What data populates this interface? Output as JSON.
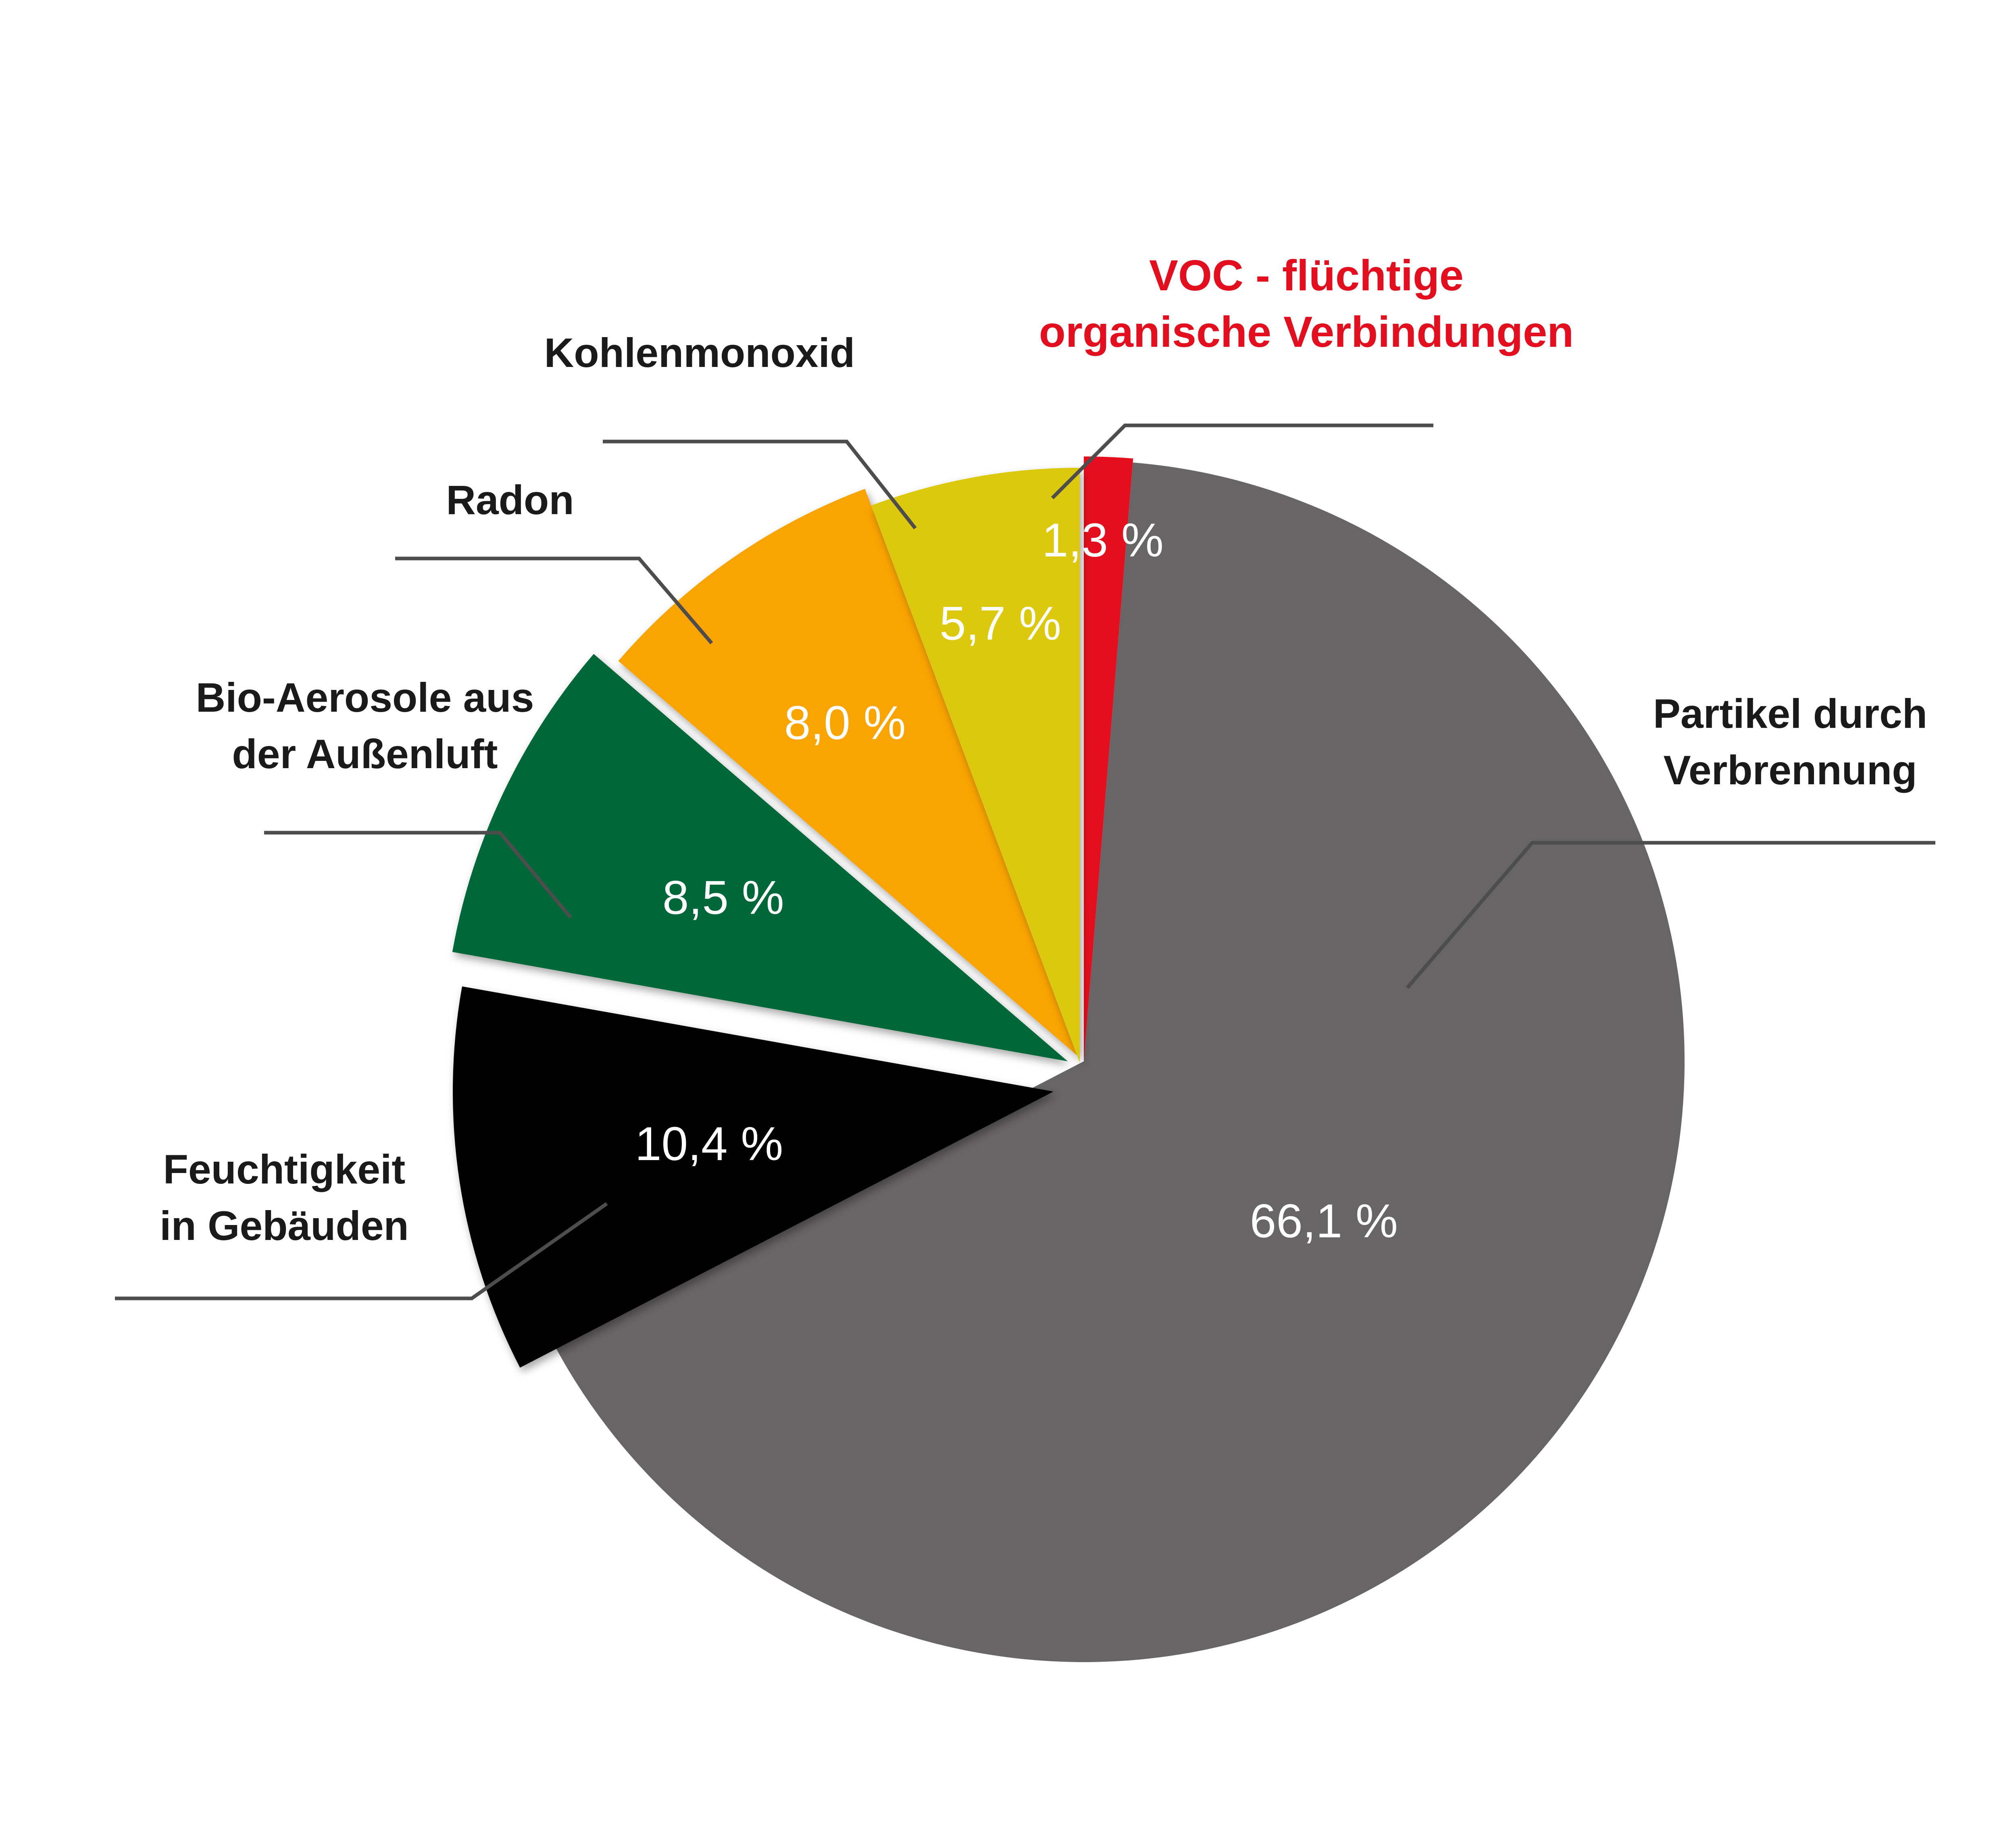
{
  "chart_data": {
    "type": "pie",
    "title": "",
    "slices": [
      {
        "id": "voc",
        "label": [
          "VOC - flüchtige",
          "organische Verbindungen"
        ],
        "value": 1.3,
        "value_label": "1,3 %",
        "color": "#e30f1e",
        "label_color": "#e30f1e"
      },
      {
        "id": "particles",
        "label": [
          "Partikel durch",
          "Verbrennung"
        ],
        "value": 66.1,
        "value_label": "66,1 %",
        "color": "#686566",
        "label_color": "#1a1a1a"
      },
      {
        "id": "humidity",
        "label": [
          "Feuchtigkeit",
          "in Gebäuden"
        ],
        "value": 10.4,
        "value_label": "10,4 %",
        "color": "#000000",
        "label_color": "#1a1a1a",
        "exploded": true
      },
      {
        "id": "bioaerosols",
        "label": [
          "Bio-Aerosole aus",
          "der Außenluft"
        ],
        "value": 8.5,
        "value_label": "8,5 %",
        "color": "#006838",
        "label_color": "#1a1a1a",
        "exploded": true
      },
      {
        "id": "radon",
        "label": [
          "Radon"
        ],
        "value": 8.0,
        "value_label": "8,0 %",
        "color": "#f9a400",
        "label_color": "#1a1a1a",
        "exploded": true
      },
      {
        "id": "co",
        "label": [
          "Kohlenmonoxid"
        ],
        "value": 5.7,
        "value_label": "5,7 %",
        "color": "#dcc80c",
        "label_color": "#1a1a1a",
        "exploded": true
      }
    ],
    "start_angle": "12 o'clock",
    "direction": "clockwise",
    "legend": "none (leader-line callouts)"
  }
}
